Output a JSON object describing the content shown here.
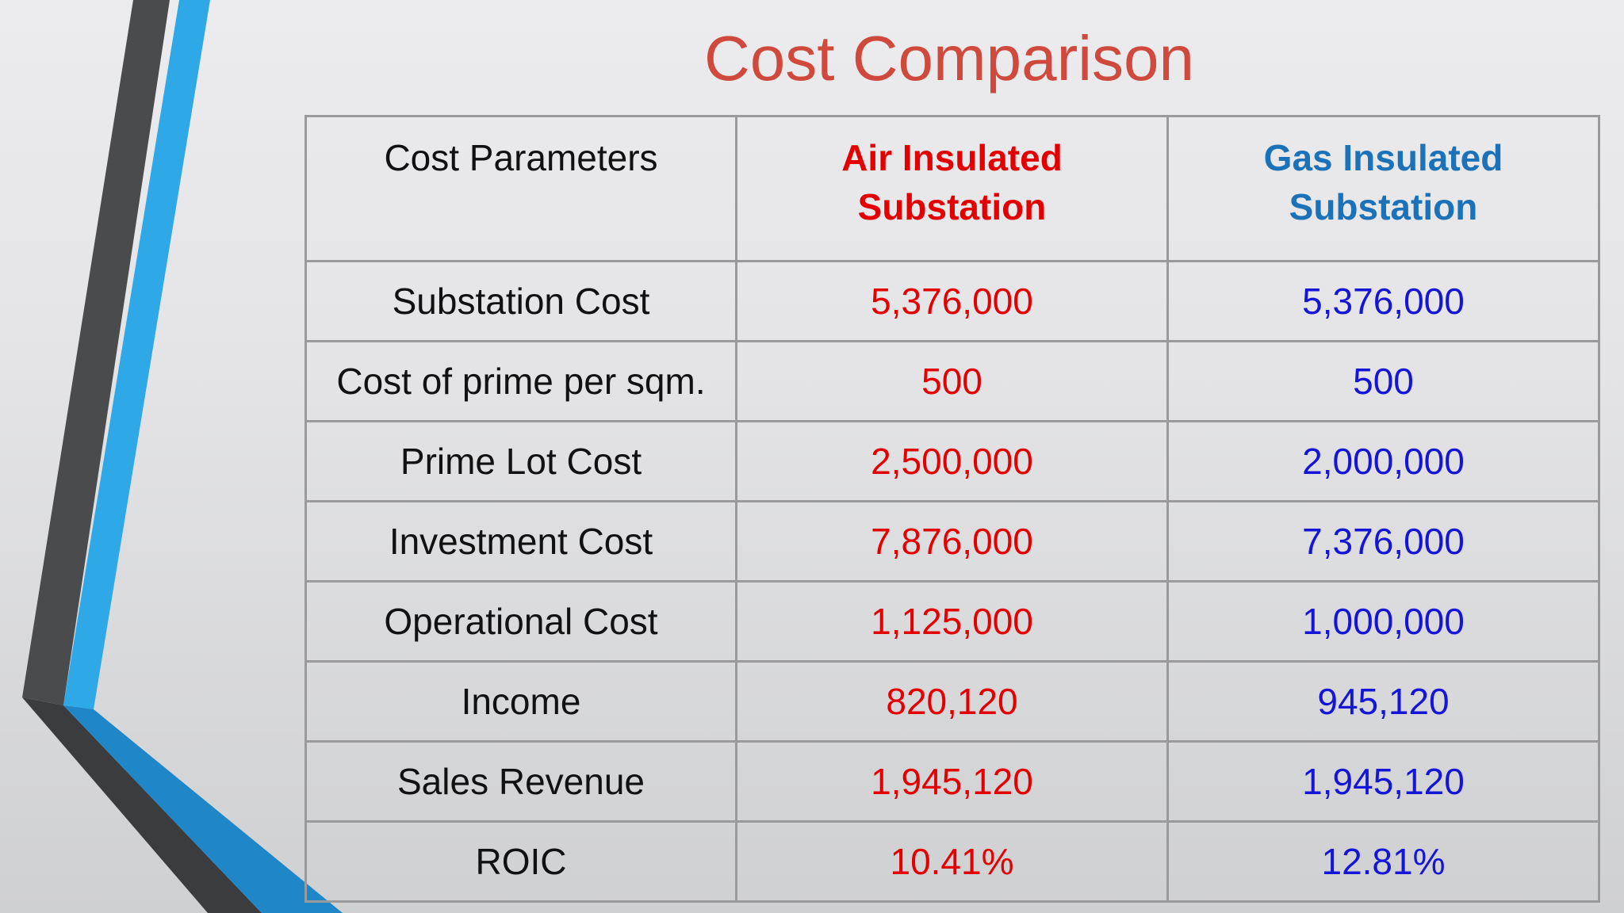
{
  "title": "Cost Comparison",
  "colors": {
    "title": "#cf4a3c",
    "air_insulated": "#e30000",
    "gas_insulated_header": "#1b72b9",
    "gas_insulated_values": "#1515d8",
    "grid": "#9a9a9c",
    "accent_blue": "#2fa8e8",
    "accent_dark": "#4a4b4d"
  },
  "table": {
    "headers": {
      "parameter": "Cost Parameters",
      "ais_line1": "Air Insulated",
      "ais_line2": "Substation",
      "gis_line1": "Gas Insulated",
      "gis_line2": "Substation"
    },
    "rows": [
      {
        "parameter": "Substation Cost",
        "ais": "5,376,000",
        "gis": "5,376,000"
      },
      {
        "parameter": "Cost of prime per sqm.",
        "ais": "500",
        "gis": "500"
      },
      {
        "parameter": "Prime Lot Cost",
        "ais": "2,500,000",
        "gis": "2,000,000"
      },
      {
        "parameter": "Investment Cost",
        "ais": "7,876,000",
        "gis": "7,376,000"
      },
      {
        "parameter": "Operational Cost",
        "ais": "1,125,000",
        "gis": "1,000,000"
      },
      {
        "parameter": "Income",
        "ais": "820,120",
        "gis": "945,120"
      },
      {
        "parameter": "Sales Revenue",
        "ais": "1,945,120",
        "gis": "1,945,120"
      },
      {
        "parameter": "ROIC",
        "ais": "10.41%",
        "gis": "12.81%"
      }
    ]
  }
}
